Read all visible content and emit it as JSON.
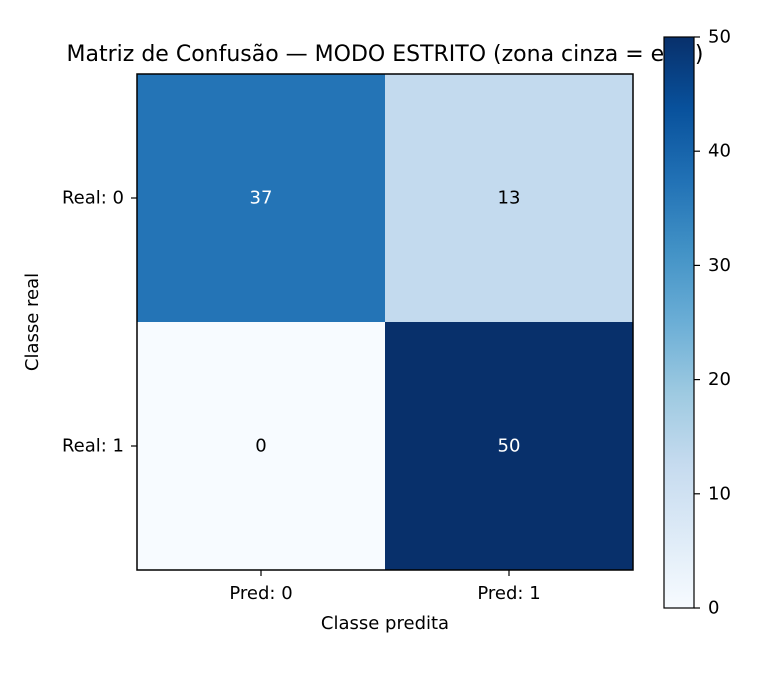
{
  "chart_data": {
    "type": "heatmap",
    "title": "Matriz de Confusão — MODO ESTRITO (zona cinza = erro)",
    "xlabel": "Classe predita",
    "ylabel": "Classe real",
    "x_categories": [
      "Pred: 0",
      "Pred: 1"
    ],
    "y_categories": [
      "Real: 0",
      "Real: 1"
    ],
    "values": [
      [
        37,
        13
      ],
      [
        0,
        50
      ]
    ],
    "colormap": "Blues",
    "colorbar": {
      "range": [
        0,
        50
      ],
      "ticks": [
        0,
        10,
        20,
        30,
        40,
        50
      ]
    },
    "grid": false
  }
}
